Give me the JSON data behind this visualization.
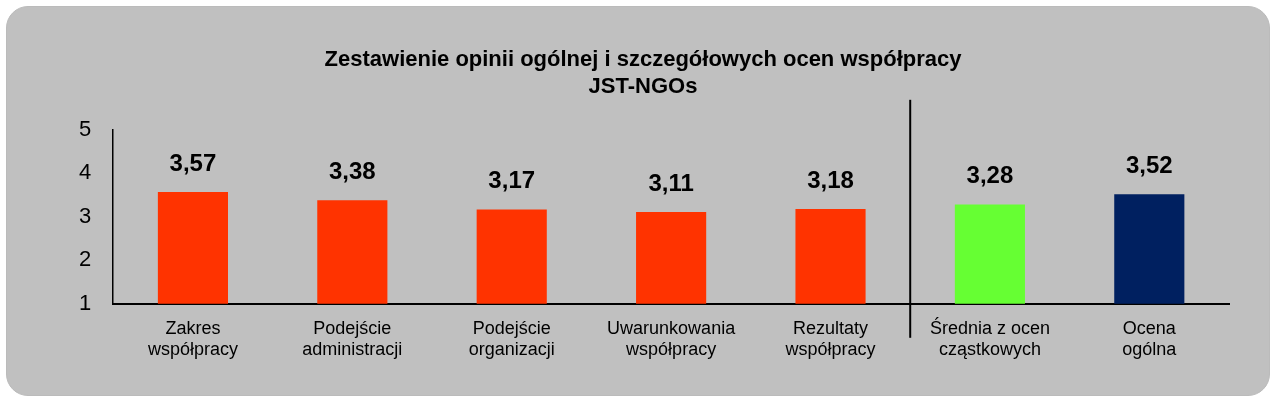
{
  "chart_data": {
    "type": "bar",
    "title": "Zestawienie opinii ogólnej i szczegółowych ocen współpracy JST-NGOs",
    "categories": [
      "Zakres współpracy",
      "Podejście administracji",
      "Podejście organizacji",
      "Uwarunkowania współpracy",
      "Rezultaty współpracy",
      "Średnia z ocen cząstkowych",
      "Ocena ogólna"
    ],
    "values": [
      3.57,
      3.38,
      3.17,
      3.11,
      3.18,
      3.28,
      3.52
    ],
    "colors": [
      "#ff3300",
      "#ff3300",
      "#ff3300",
      "#ff3300",
      "#ff3300",
      "#66ff33",
      "#002060"
    ],
    "value_labels": [
      "3,57",
      "3,38",
      "3,17",
      "3,11",
      "3,18",
      "3,28",
      "3,52"
    ],
    "ylim": [
      1,
      5
    ],
    "yticks": [
      1,
      2,
      3,
      4,
      5
    ],
    "grid": false,
    "legend": false
  }
}
